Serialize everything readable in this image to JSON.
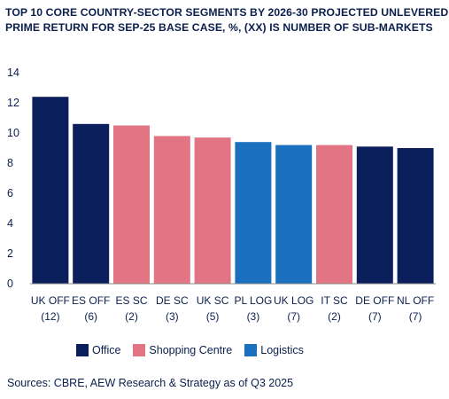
{
  "title_lines": [
    "TOP 10 CORE COUNTRY-SECTOR SEGMENTS BY 2026-30 PROJECTED UNLEVERED",
    "PRIME RETURN FOR SEP-25 BASE CASE, %, (XX) IS NUMBER OF SUB-MARKETS"
  ],
  "source": "Sources: CBRE, AEW Research & Strategy as of Q3 2025",
  "colors": {
    "Office": "#0b1f5c",
    "Shopping Centre": "#e27483",
    "Logistics": "#1b6fbf",
    "axis": "#8a8a8a"
  },
  "chart_data": {
    "type": "bar",
    "title": "TOP 10 CORE COUNTRY-SECTOR SEGMENTS BY 2026-30 PROJECTED UNLEVERED PRIME RETURN FOR SEP-25 BASE CASE, %, (XX) IS NUMBER OF SUB-MARKETS",
    "ylim": [
      0,
      14
    ],
    "yticks": [
      0,
      2,
      4,
      6,
      8,
      10,
      12,
      14
    ],
    "grid": false,
    "legend_placement": "bottom",
    "legend": [
      "Office",
      "Shopping Centre",
      "Logistics"
    ],
    "categories": [
      {
        "label": "UK OFF",
        "count": "(12)",
        "sector": "Office",
        "value": 12.4
      },
      {
        "label": "ES OFF",
        "count": "(6)",
        "sector": "Office",
        "value": 10.6
      },
      {
        "label": "ES SC",
        "count": "(2)",
        "sector": "Shopping Centre",
        "value": 10.5
      },
      {
        "label": "DE SC",
        "count": "(3)",
        "sector": "Shopping Centre",
        "value": 9.8
      },
      {
        "label": "UK SC",
        "count": "(5)",
        "sector": "Shopping Centre",
        "value": 9.7
      },
      {
        "label": "PL LOG",
        "count": "(3)",
        "sector": "Logistics",
        "value": 9.4
      },
      {
        "label": "UK LOG",
        "count": "(7)",
        "sector": "Logistics",
        "value": 9.2
      },
      {
        "label": "IT SC",
        "count": "(2)",
        "sector": "Shopping Centre",
        "value": 9.2
      },
      {
        "label": "DE OFF",
        "count": "(7)",
        "sector": "Office",
        "value": 9.1
      },
      {
        "label": "NL OFF",
        "count": "(7)",
        "sector": "Office",
        "value": 9.0
      }
    ]
  }
}
